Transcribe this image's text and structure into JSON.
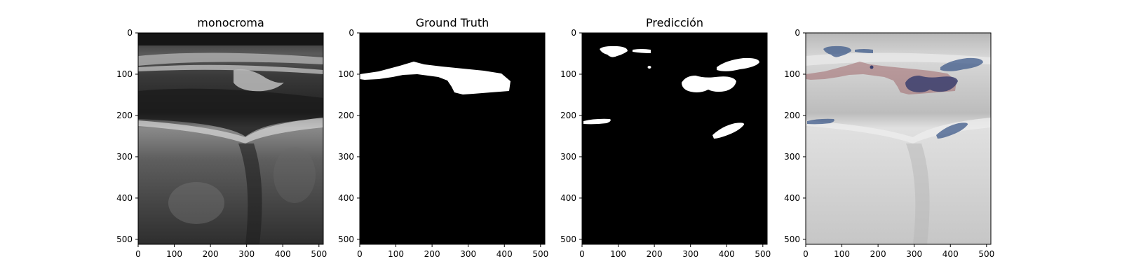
{
  "figure": {
    "panels": [
      {
        "title": "monocroma",
        "kind": "ultrasound-grayscale"
      },
      {
        "title": "Ground Truth",
        "kind": "binary-mask-gt"
      },
      {
        "title": "Predicción",
        "kind": "binary-mask-pred"
      },
      {
        "title": "",
        "kind": "overlay"
      }
    ],
    "axis": {
      "x_ticks": [
        "0",
        "100",
        "200",
        "300",
        "400",
        "500"
      ],
      "y_ticks": [
        "0",
        "100",
        "200",
        "300",
        "400",
        "500"
      ],
      "x_range": [
        0,
        512
      ],
      "y_range": [
        0,
        512
      ]
    },
    "colors": {
      "mask_foreground": "#ffffff",
      "mask_background": "#000000",
      "overlay_ground_truth": "#a0686c",
      "overlay_prediction": "#3d5a8a",
      "overlay_intersection": "#3b3f6e"
    }
  }
}
